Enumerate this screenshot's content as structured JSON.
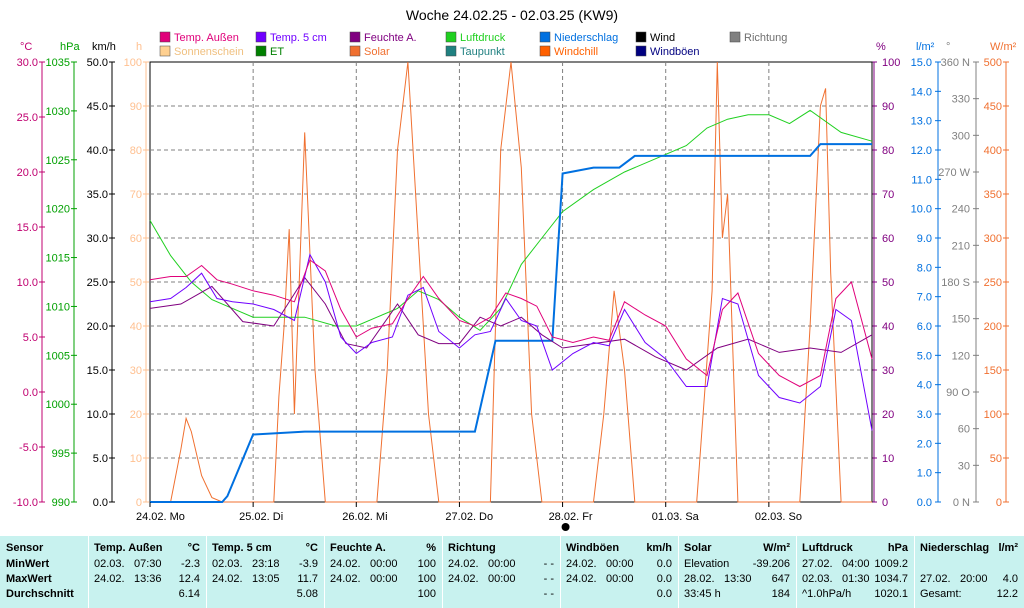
{
  "chart_data": {
    "type": "line",
    "title": "Woche 24.02.25 - 02.03.25 (KW9)",
    "x_labels": [
      "24.02.  Mo",
      "25.02.  Di",
      "26.02.  Mi",
      "27.02.  Do",
      "28.02.  Fr",
      "01.03.  Sa",
      "02.03.  So"
    ],
    "legend": [
      {
        "name": "Temp. Außen",
        "color": "#e0007a"
      },
      {
        "name": "Temp. 5 cm",
        "color": "#7000ff"
      },
      {
        "name": "Feuchte A.",
        "color": "#800080"
      },
      {
        "name": "Luftdruck",
        "color": "#20d020"
      },
      {
        "name": "Niederschlag",
        "color": "#0070e0"
      },
      {
        "name": "Wind",
        "color": "#000000"
      },
      {
        "name": "Richtung",
        "color": "#808080"
      },
      {
        "name": "Sonnenschein",
        "color": "#ffd090"
      },
      {
        "name": "ET",
        "color": "#008000"
      },
      {
        "name": "Solar",
        "color": "#f07030"
      },
      {
        "name": "Taupunkt",
        "color": "#208080"
      },
      {
        "name": "Windchill",
        "color": "#ff6000"
      },
      {
        "name": "Windböen",
        "color": "#000080"
      }
    ],
    "axes": {
      "temp": {
        "unit": "°C",
        "range": [
          -10,
          30
        ],
        "ticks": [
          "30.0",
          "25.0",
          "20.0",
          "15.0",
          "10.0",
          "5.0",
          "0.0",
          "-5.0",
          "-10.0"
        ],
        "color": "#c00070"
      },
      "pressure": {
        "unit": "hPa",
        "range": [
          990,
          1040
        ],
        "ticks": [
          "1035",
          "1030",
          "1025",
          "1020",
          "1015",
          "1010",
          "1005",
          "1000",
          "995",
          "990"
        ],
        "color": "#00a000"
      },
      "wind": {
        "unit": "km/h",
        "range": [
          0,
          50
        ],
        "ticks": [
          "50.0",
          "45.0",
          "40.0",
          "35.0",
          "30.0",
          "25.0",
          "20.0",
          "15.0",
          "10.0",
          "5.0",
          "0.0"
        ],
        "color": "#000000"
      },
      "sun": {
        "unit": "h",
        "range": [
          0,
          100
        ],
        "ticks": [
          "100",
          "90",
          "80",
          "70",
          "60",
          "50",
          "40",
          "30",
          "20",
          "10",
          "0"
        ],
        "color": "#ffc090"
      },
      "humidity": {
        "unit": "%",
        "range": [
          0,
          100
        ],
        "ticks": [
          "100",
          "90",
          "80",
          "70",
          "60",
          "50",
          "40",
          "30",
          "20",
          "10",
          "0"
        ],
        "color": "#800080"
      },
      "rain": {
        "unit": "l/m²",
        "range": [
          0,
          15
        ],
        "ticks": [
          "15.0",
          "14.0",
          "13.0",
          "12.0",
          "11.0",
          "10.0",
          "9.0",
          "8.0",
          "7.0",
          "6.0",
          "5.0",
          "4.0",
          "3.0",
          "2.0",
          "1.0",
          "0.0"
        ],
        "color": "#0070e0"
      },
      "direction": {
        "unit": "°",
        "range": [
          0,
          360
        ],
        "ticks": [
          "360 N",
          "330",
          "300",
          "270 W",
          "240",
          "210",
          "180 S",
          "150",
          "120",
          "90 O",
          "60",
          "30",
          "0 N"
        ],
        "color": "#808080"
      },
      "solar": {
        "unit": "W/m²",
        "range": [
          0,
          500
        ],
        "ticks": [
          "500",
          "450",
          "400",
          "350",
          "300",
          "250",
          "200",
          "150",
          "100",
          "50",
          "0"
        ],
        "color": "#f07030"
      }
    },
    "series": [
      {
        "name": "Luftdruck",
        "axis": "pressure",
        "x": [
          0,
          0.2,
          0.4,
          0.6,
          0.8,
          1.0,
          1.3,
          1.5,
          1.8,
          2.0,
          2.2,
          2.4,
          2.6,
          2.8,
          3.0,
          3.2,
          3.4,
          3.6,
          3.8,
          4.0,
          4.3,
          4.6,
          4.9,
          5.2,
          5.4,
          5.6,
          5.8,
          6.0,
          6.2,
          6.4,
          6.7,
          7.0
        ],
        "y": [
          1022,
          1018,
          1015,
          1013,
          1012,
          1011,
          1011,
          1011,
          1010,
          1010,
          1011,
          1012,
          1014,
          1013,
          1011,
          1009.5,
          1012,
          1017,
          1020,
          1023,
          1025.5,
          1027.5,
          1029,
          1030.5,
          1032.5,
          1033.5,
          1034,
          1034,
          1033,
          1034.5,
          1032,
          1031
        ]
      },
      {
        "name": "Temp. Außen",
        "axis": "temp",
        "x": [
          0,
          0.2,
          0.35,
          0.5,
          0.65,
          0.8,
          1.0,
          1.2,
          1.4,
          1.55,
          1.7,
          1.85,
          2.0,
          2.15,
          2.35,
          2.5,
          2.65,
          2.8,
          3.0,
          3.15,
          3.3,
          3.45,
          3.6,
          3.75,
          3.9,
          4.1,
          4.3,
          4.45,
          4.6,
          4.8,
          5.0,
          5.2,
          5.4,
          5.55,
          5.7,
          5.9,
          6.1,
          6.3,
          6.5,
          6.65,
          6.8,
          7.0
        ],
        "y": [
          10.2,
          10.5,
          10.5,
          11.5,
          10.2,
          9.8,
          9.2,
          8.8,
          8.2,
          12.0,
          11.0,
          7.5,
          5.0,
          5.8,
          6.2,
          8.5,
          10.5,
          8.5,
          6.5,
          6.0,
          6.8,
          9.0,
          8.5,
          7.8,
          5.0,
          4.5,
          5.0,
          4.7,
          8.2,
          7.0,
          6.0,
          3.0,
          1.5,
          7.5,
          9.0,
          3.5,
          1.5,
          0.5,
          1.5,
          8.5,
          10.0,
          3.0
        ]
      },
      {
        "name": "Temp. 5 cm",
        "axis": "temp",
        "x": [
          0,
          0.2,
          0.35,
          0.5,
          0.65,
          0.8,
          1.0,
          1.2,
          1.4,
          1.55,
          1.7,
          1.85,
          2.0,
          2.15,
          2.35,
          2.5,
          2.65,
          2.8,
          3.0,
          3.15,
          3.3,
          3.45,
          3.6,
          3.75,
          3.9,
          4.1,
          4.3,
          4.45,
          4.6,
          4.8,
          5.0,
          5.2,
          5.4,
          5.55,
          5.7,
          5.9,
          6.1,
          6.3,
          6.5,
          6.65,
          6.8,
          7.0
        ],
        "y": [
          8.2,
          8.5,
          9.5,
          10.8,
          8.5,
          8.2,
          8.0,
          7.5,
          6.5,
          12.5,
          10.0,
          5.0,
          3.5,
          4.5,
          5.0,
          8.8,
          9.5,
          5.5,
          4.0,
          5.2,
          5.5,
          8.5,
          6.5,
          6.0,
          2.0,
          3.5,
          4.5,
          4.2,
          7.5,
          4.5,
          3.0,
          0.5,
          0.5,
          8.5,
          8.0,
          1.5,
          -0.5,
          -1.0,
          0.5,
          7.5,
          6.5,
          -3.5
        ]
      },
      {
        "name": "Feuchte A.",
        "axis": "humidity",
        "x": [
          0,
          0.3,
          0.6,
          0.9,
          1.2,
          1.5,
          1.7,
          1.9,
          2.1,
          2.4,
          2.6,
          2.8,
          3.0,
          3.2,
          3.4,
          3.6,
          3.8,
          4.0,
          4.3,
          4.6,
          4.9,
          5.2,
          5.5,
          5.8,
          6.1,
          6.4,
          6.7,
          7.0
        ],
        "y": [
          44,
          45,
          49,
          41,
          40,
          51,
          45,
          36,
          35,
          45,
          38,
          36,
          36,
          42,
          40,
          42,
          38,
          35,
          36,
          37,
          33,
          30,
          35,
          37,
          34,
          35,
          34,
          38
        ]
      },
      {
        "name": "Niederschlag",
        "axis": "rain",
        "x": [
          0,
          0.3,
          0.5,
          0.7,
          0.75,
          1.0,
          1.5,
          2.0,
          2.5,
          3.0,
          3.15,
          3.35,
          3.5,
          3.7,
          3.9,
          4.0,
          4.3,
          4.55,
          4.7,
          5.0,
          5.5,
          6.0,
          6.4,
          6.5,
          6.7,
          7.0
        ],
        "y": [
          0,
          0,
          0,
          0,
          0.2,
          2.3,
          2.4,
          2.4,
          2.4,
          2.4,
          2.4,
          5.5,
          5.5,
          5.5,
          5.5,
          11.2,
          11.4,
          11.4,
          11.8,
          11.8,
          11.8,
          11.8,
          11.8,
          12.2,
          12.2,
          12.2
        ]
      },
      {
        "name": "Solar",
        "axis": "solar",
        "x": [
          0,
          0.2,
          0.3,
          0.35,
          0.4,
          0.5,
          0.6,
          0.7,
          1.0,
          1.2,
          1.25,
          1.3,
          1.35,
          1.4,
          1.5,
          1.6,
          1.7,
          1.8,
          2.0,
          2.2,
          2.3,
          2.4,
          2.5,
          2.6,
          2.7,
          2.8,
          3.0,
          3.3,
          3.35,
          3.4,
          3.5,
          3.6,
          3.7,
          3.8,
          4.0,
          4.3,
          4.4,
          4.5,
          4.6,
          4.7,
          5.0,
          5.3,
          5.45,
          5.5,
          5.55,
          5.6,
          5.7,
          6.0,
          6.3,
          6.4,
          6.5,
          6.55,
          6.6,
          6.7,
          7.0
        ],
        "y": [
          0,
          0,
          60,
          95,
          80,
          30,
          5,
          0,
          0,
          0,
          120,
          200,
          310,
          100,
          420,
          150,
          0,
          0,
          0,
          0,
          150,
          400,
          500,
          300,
          100,
          0,
          0,
          0,
          200,
          400,
          500,
          380,
          100,
          0,
          0,
          0,
          100,
          240,
          150,
          0,
          0,
          0,
          240,
          500,
          300,
          350,
          0,
          0,
          0,
          200,
          450,
          470,
          260,
          0,
          0
        ]
      }
    ]
  },
  "table": {
    "columns": [
      {
        "header": "Sensor",
        "unit": "",
        "rows": [
          [
            "MinWert",
            "",
            ""
          ],
          [
            "MaxWert",
            "",
            ""
          ],
          [
            "Durchschnitt",
            "",
            ""
          ]
        ]
      },
      {
        "header": "Temp. Außen",
        "unit": "°C",
        "rows": [
          [
            "02.03.",
            "07:30",
            "-2.3"
          ],
          [
            "24.02.",
            "13:36",
            "12.4"
          ],
          [
            "",
            "",
            "6.14"
          ]
        ]
      },
      {
        "header": "Temp. 5 cm",
        "unit": "°C",
        "rows": [
          [
            "02.03.",
            "23:18",
            "-3.9"
          ],
          [
            "24.02.",
            "13:05",
            "11.7"
          ],
          [
            "",
            "",
            "5.08"
          ]
        ]
      },
      {
        "header": "Feuchte A.",
        "unit": "%",
        "rows": [
          [
            "24.02.",
            "00:00",
            "100"
          ],
          [
            "24.02.",
            "00:00",
            "100"
          ],
          [
            "",
            "",
            "100"
          ]
        ]
      },
      {
        "header": "Richtung",
        "unit": "",
        "rows": [
          [
            "24.02.",
            "00:00",
            "- -"
          ],
          [
            "24.02.",
            "00:00",
            "- -"
          ],
          [
            "",
            "",
            "- -"
          ]
        ]
      },
      {
        "header": "Windböen",
        "unit": "km/h",
        "rows": [
          [
            "24.02.",
            "00:00",
            "0.0"
          ],
          [
            "24.02.",
            "00:00",
            "0.0"
          ],
          [
            "",
            "",
            "0.0"
          ]
        ]
      },
      {
        "header": "Solar",
        "unit": "W/m²",
        "rows": [
          [
            "Elevation",
            "",
            "-39.206"
          ],
          [
            "28.02.",
            "13:30",
            "647"
          ],
          [
            "33:45 h",
            "",
            "184"
          ]
        ]
      },
      {
        "header": "Luftdruck",
        "unit": "hPa",
        "rows": [
          [
            "27.02.",
            "04:00",
            "1009.2"
          ],
          [
            "02.03.",
            "01:30",
            "1034.7"
          ],
          [
            "^1.0hPa/h",
            "",
            "1020.1"
          ]
        ]
      },
      {
        "header": "Niederschlag",
        "unit": "l/m²",
        "rows": [
          [
            "",
            "",
            ""
          ],
          [
            "27.02.",
            "20:00",
            "4.0"
          ],
          [
            "Gesamt:",
            "",
            "12.2"
          ]
        ]
      }
    ]
  }
}
